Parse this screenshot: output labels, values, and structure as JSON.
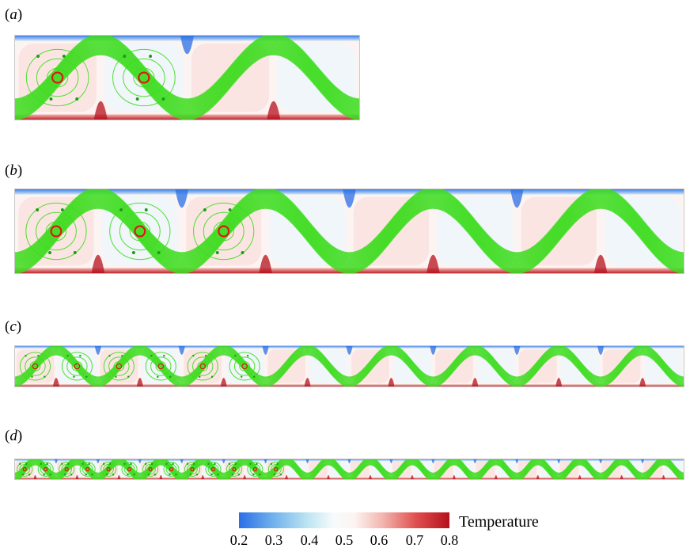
{
  "panels": [
    {
      "label": "a",
      "cells": 4
    },
    {
      "label": "b",
      "cells": 8
    },
    {
      "label": "c",
      "cells": 16
    },
    {
      "label": "d",
      "cells": 32
    }
  ],
  "colorbar": {
    "title": "Temperature",
    "ticks": [
      "0.2",
      "0.3",
      "0.4",
      "0.5",
      "0.6",
      "0.7",
      "0.8"
    ],
    "cold_color": "#2a6fe6",
    "hot_color": "#b5101c"
  },
  "trajectory_colors": {
    "fast_path": "#3ddc1f",
    "trapped": "#e01414"
  }
}
